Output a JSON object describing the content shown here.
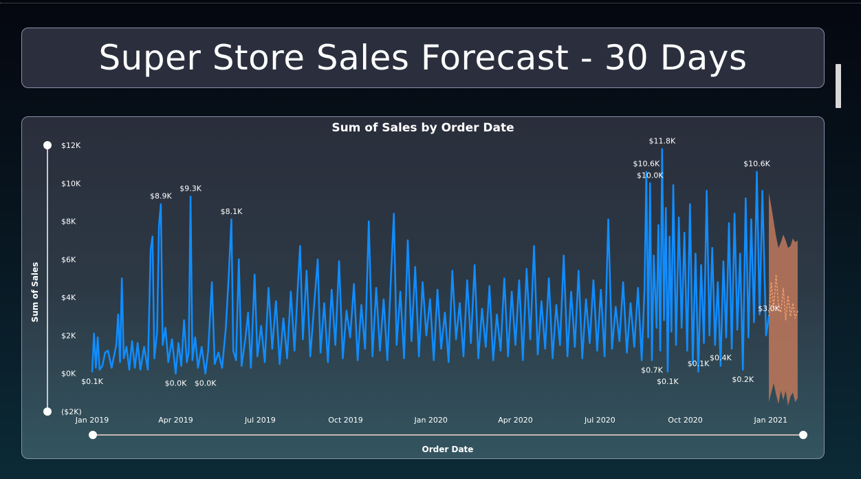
{
  "header": {
    "title": "Super Store Sales Forecast - 30 Days"
  },
  "colors": {
    "series": "#118dff",
    "forecast_band": "#c0785a",
    "forecast_line": "#f0a070",
    "slider": "#ffffff"
  },
  "chart_data": {
    "type": "line",
    "title": "Sum of Sales by Order Date",
    "xlabel": "Order Date",
    "ylabel": "Sum of Sales",
    "ylim": [
      -2000,
      12000
    ],
    "xlim": [
      "2019-01-01",
      "2021-02-05"
    ],
    "y_ticks": [
      {
        "value": 12000,
        "label": "$12K"
      },
      {
        "value": 10000,
        "label": "$10K"
      },
      {
        "value": 8000,
        "label": "$8K"
      },
      {
        "value": 6000,
        "label": "$6K"
      },
      {
        "value": 4000,
        "label": "$4K"
      },
      {
        "value": 2000,
        "label": "$2K"
      },
      {
        "value": 0,
        "label": "$0K"
      },
      {
        "value": -2000,
        "label": "($2K)"
      }
    ],
    "x_ticks": [
      {
        "date": "2019-01-01",
        "label": "Jan 2019"
      },
      {
        "date": "2019-04-01",
        "label": "Apr 2019"
      },
      {
        "date": "2019-07-01",
        "label": "Jul 2019"
      },
      {
        "date": "2019-10-01",
        "label": "Oct 2019"
      },
      {
        "date": "2020-01-01",
        "label": "Jan 2020"
      },
      {
        "date": "2020-04-01",
        "label": "Apr 2020"
      },
      {
        "date": "2020-07-01",
        "label": "Jul 2020"
      },
      {
        "date": "2020-10-01",
        "label": "Oct 2020"
      },
      {
        "date": "2021-01-01",
        "label": "Jan 2021"
      }
    ],
    "series": [
      {
        "points": [
          [
            "2019-01-01",
            100
          ],
          [
            "2019-01-03",
            2100
          ],
          [
            "2019-01-05",
            300
          ],
          [
            "2019-01-07",
            1900
          ],
          [
            "2019-01-09",
            200
          ],
          [
            "2019-01-12",
            400
          ],
          [
            "2019-01-15",
            1100
          ],
          [
            "2019-01-18",
            1200
          ],
          [
            "2019-01-22",
            300
          ],
          [
            "2019-01-27",
            1500
          ],
          [
            "2019-01-29",
            3100
          ],
          [
            "2019-01-31",
            600
          ],
          [
            "2019-02-02",
            5000
          ],
          [
            "2019-02-04",
            800
          ],
          [
            "2019-02-07",
            1400
          ],
          [
            "2019-02-10",
            200
          ],
          [
            "2019-02-13",
            1700
          ],
          [
            "2019-02-16",
            300
          ],
          [
            "2019-02-19",
            1600
          ],
          [
            "2019-02-22",
            200
          ],
          [
            "2019-02-26",
            1400
          ],
          [
            "2019-03-02",
            200
          ],
          [
            "2019-03-05",
            6500
          ],
          [
            "2019-03-07",
            7200
          ],
          [
            "2019-03-09",
            800
          ],
          [
            "2019-03-12",
            2200
          ],
          [
            "2019-03-14",
            7800
          ],
          [
            "2019-03-16",
            8900
          ],
          [
            "2019-03-18",
            1500
          ],
          [
            "2019-03-21",
            2400
          ],
          [
            "2019-03-24",
            600
          ],
          [
            "2019-03-28",
            1800
          ],
          [
            "2019-04-01",
            0
          ],
          [
            "2019-04-04",
            1600
          ],
          [
            "2019-04-07",
            400
          ],
          [
            "2019-04-10",
            2800
          ],
          [
            "2019-04-13",
            600
          ],
          [
            "2019-04-15",
            1100
          ],
          [
            "2019-04-17",
            9300
          ],
          [
            "2019-04-19",
            700
          ],
          [
            "2019-04-22",
            1900
          ],
          [
            "2019-04-25",
            300
          ],
          [
            "2019-04-29",
            1400
          ],
          [
            "2019-05-03",
            0
          ],
          [
            "2019-05-06",
            1200
          ],
          [
            "2019-05-10",
            4800
          ],
          [
            "2019-05-13",
            500
          ],
          [
            "2019-05-17",
            1100
          ],
          [
            "2019-05-21",
            300
          ],
          [
            "2019-05-25",
            2400
          ],
          [
            "2019-05-28",
            5000
          ],
          [
            "2019-05-31",
            8100
          ],
          [
            "2019-06-02",
            1200
          ],
          [
            "2019-06-05",
            700
          ],
          [
            "2019-06-08",
            6000
          ],
          [
            "2019-06-11",
            400
          ],
          [
            "2019-06-15",
            1800
          ],
          [
            "2019-06-18",
            3200
          ],
          [
            "2019-06-21",
            300
          ],
          [
            "2019-06-25",
            5200
          ],
          [
            "2019-06-28",
            900
          ],
          [
            "2019-07-02",
            2500
          ],
          [
            "2019-07-06",
            600
          ],
          [
            "2019-07-10",
            4500
          ],
          [
            "2019-07-14",
            1300
          ],
          [
            "2019-07-18",
            3800
          ],
          [
            "2019-07-22",
            500
          ],
          [
            "2019-07-26",
            2900
          ],
          [
            "2019-07-30",
            800
          ],
          [
            "2019-08-03",
            4300
          ],
          [
            "2019-08-07",
            1200
          ],
          [
            "2019-08-11",
            5000
          ],
          [
            "2019-08-13",
            6700
          ],
          [
            "2019-08-16",
            1800
          ],
          [
            "2019-08-20",
            5400
          ],
          [
            "2019-08-24",
            900
          ],
          [
            "2019-08-28",
            3500
          ],
          [
            "2019-09-01",
            6000
          ],
          [
            "2019-09-04",
            1100
          ],
          [
            "2019-09-08",
            3700
          ],
          [
            "2019-09-12",
            600
          ],
          [
            "2019-09-16",
            4400
          ],
          [
            "2019-09-20",
            1500
          ],
          [
            "2019-09-24",
            5900
          ],
          [
            "2019-09-28",
            800
          ],
          [
            "2019-10-02",
            3300
          ],
          [
            "2019-10-06",
            1900
          ],
          [
            "2019-10-10",
            4700
          ],
          [
            "2019-10-14",
            700
          ],
          [
            "2019-10-18",
            3600
          ],
          [
            "2019-10-22",
            1300
          ],
          [
            "2019-10-26",
            8000
          ],
          [
            "2019-10-30",
            900
          ],
          [
            "2019-11-03",
            4500
          ],
          [
            "2019-11-07",
            1200
          ],
          [
            "2019-11-11",
            3900
          ],
          [
            "2019-11-15",
            700
          ],
          [
            "2019-11-19",
            5200
          ],
          [
            "2019-11-22",
            8400
          ],
          [
            "2019-11-25",
            1500
          ],
          [
            "2019-11-29",
            4300
          ],
          [
            "2019-12-03",
            800
          ],
          [
            "2019-12-07",
            7000
          ],
          [
            "2019-12-11",
            1700
          ],
          [
            "2019-12-15",
            5600
          ],
          [
            "2019-12-19",
            900
          ],
          [
            "2019-12-23",
            4800
          ],
          [
            "2019-12-27",
            2000
          ],
          [
            "2019-12-31",
            3900
          ],
          [
            "2020-01-04",
            700
          ],
          [
            "2020-01-08",
            4400
          ],
          [
            "2020-01-12",
            1300
          ],
          [
            "2020-01-16",
            3200
          ],
          [
            "2020-01-20",
            600
          ],
          [
            "2020-01-24",
            5400
          ],
          [
            "2020-01-28",
            1800
          ],
          [
            "2020-02-01",
            3700
          ],
          [
            "2020-02-05",
            900
          ],
          [
            "2020-02-09",
            4900
          ],
          [
            "2020-02-13",
            1600
          ],
          [
            "2020-02-17",
            5700
          ],
          [
            "2020-02-21",
            800
          ],
          [
            "2020-02-25",
            3400
          ],
          [
            "2020-02-29",
            1400
          ],
          [
            "2020-03-04",
            4600
          ],
          [
            "2020-03-08",
            700
          ],
          [
            "2020-03-12",
            3100
          ],
          [
            "2020-03-16",
            1200
          ],
          [
            "2020-03-20",
            5000
          ],
          [
            "2020-03-24",
            900
          ],
          [
            "2020-03-28",
            4300
          ],
          [
            "2020-04-01",
            1500
          ],
          [
            "2020-04-05",
            4900
          ],
          [
            "2020-04-09",
            700
          ],
          [
            "2020-04-13",
            5500
          ],
          [
            "2020-04-17",
            1800
          ],
          [
            "2020-04-21",
            6700
          ],
          [
            "2020-04-25",
            1000
          ],
          [
            "2020-04-29",
            3800
          ],
          [
            "2020-05-03",
            1300
          ],
          [
            "2020-05-07",
            5000
          ],
          [
            "2020-05-11",
            800
          ],
          [
            "2020-05-15",
            3600
          ],
          [
            "2020-05-19",
            1500
          ],
          [
            "2020-05-23",
            6200
          ],
          [
            "2020-05-27",
            900
          ],
          [
            "2020-05-31",
            4300
          ],
          [
            "2020-06-04",
            1400
          ],
          [
            "2020-06-08",
            5400
          ],
          [
            "2020-06-12",
            800
          ],
          [
            "2020-06-16",
            3900
          ],
          [
            "2020-06-20",
            1600
          ],
          [
            "2020-06-24",
            4900
          ],
          [
            "2020-06-28",
            1200
          ],
          [
            "2020-07-02",
            4400
          ],
          [
            "2020-07-06",
            900
          ],
          [
            "2020-07-10",
            8100
          ],
          [
            "2020-07-14",
            1300
          ],
          [
            "2020-07-18",
            3500
          ],
          [
            "2020-07-22",
            1700
          ],
          [
            "2020-07-26",
            4800
          ],
          [
            "2020-07-30",
            1100
          ],
          [
            "2020-08-03",
            3700
          ],
          [
            "2020-08-07",
            1400
          ],
          [
            "2020-08-11",
            4500
          ],
          [
            "2020-08-15",
            700
          ],
          [
            "2020-08-18",
            4400
          ],
          [
            "2020-08-20",
            10600
          ],
          [
            "2020-08-22",
            1900
          ],
          [
            "2020-08-24",
            10000
          ],
          [
            "2020-08-26",
            700
          ],
          [
            "2020-08-28",
            6200
          ],
          [
            "2020-08-31",
            2400
          ],
          [
            "2020-09-02",
            7800
          ],
          [
            "2020-09-04",
            1200
          ],
          [
            "2020-09-06",
            11800
          ],
          [
            "2020-09-08",
            2800
          ],
          [
            "2020-09-10",
            8700
          ],
          [
            "2020-09-12",
            100
          ],
          [
            "2020-09-14",
            7200
          ],
          [
            "2020-09-16",
            2200
          ],
          [
            "2020-09-18",
            9900
          ],
          [
            "2020-09-21",
            1500
          ],
          [
            "2020-09-24",
            8200
          ],
          [
            "2020-09-27",
            2400
          ],
          [
            "2020-09-30",
            7400
          ],
          [
            "2020-10-03",
            1200
          ],
          [
            "2020-10-06",
            8900
          ],
          [
            "2020-10-09",
            500
          ],
          [
            "2020-10-12",
            6300
          ],
          [
            "2020-10-15",
            100
          ],
          [
            "2020-10-18",
            5700
          ],
          [
            "2020-10-21",
            1600
          ],
          [
            "2020-10-24",
            9600
          ],
          [
            "2020-10-27",
            2000
          ],
          [
            "2020-10-30",
            6600
          ],
          [
            "2020-11-02",
            1500
          ],
          [
            "2020-11-05",
            4800
          ],
          [
            "2020-11-08",
            400
          ],
          [
            "2020-11-11",
            5900
          ],
          [
            "2020-11-14",
            1900
          ],
          [
            "2020-11-17",
            7900
          ],
          [
            "2020-11-20",
            1300
          ],
          [
            "2020-11-23",
            8400
          ],
          [
            "2020-11-26",
            2300
          ],
          [
            "2020-11-29",
            6300
          ],
          [
            "2020-12-02",
            200
          ],
          [
            "2020-12-05",
            9200
          ],
          [
            "2020-12-08",
            1900
          ],
          [
            "2020-12-11",
            8100
          ],
          [
            "2020-12-14",
            2700
          ],
          [
            "2020-12-17",
            10600
          ],
          [
            "2020-12-20",
            3100
          ],
          [
            "2020-12-23",
            9600
          ],
          [
            "2020-12-27",
            2000
          ],
          [
            "2020-12-30",
            3000
          ]
        ]
      }
    ],
    "forecast": {
      "start": "2020-12-30",
      "end": "2021-01-30",
      "upper": [
        9500,
        8800,
        8000,
        7200,
        6600,
        6900,
        7300,
        7000,
        6600,
        6700,
        7100,
        6900,
        7000
      ],
      "lower": [
        -1500,
        -1000,
        -500,
        -1100,
        -1600,
        -900,
        -1400,
        -900,
        -1700,
        -1200,
        -1000,
        -1500,
        -1300
      ],
      "estimate": [
        3000,
        4800,
        3400,
        5200,
        3600,
        3200,
        4500,
        2800,
        4100,
        3000,
        3700,
        2900,
        3300
      ]
    },
    "data_labels": [
      {
        "date": "2019-01-01",
        "value": 100,
        "label": "$0.1K",
        "pos": "below"
      },
      {
        "date": "2019-03-16",
        "value": 8900,
        "label": "$8.9K",
        "pos": "above"
      },
      {
        "date": "2019-04-01",
        "value": 0,
        "label": "$0.0K",
        "pos": "below"
      },
      {
        "date": "2019-04-17",
        "value": 9300,
        "label": "$9.3K",
        "pos": "above"
      },
      {
        "date": "2019-05-03",
        "value": 0,
        "label": "$0.0K",
        "pos": "below"
      },
      {
        "date": "2019-05-31",
        "value": 8100,
        "label": "$8.1K",
        "pos": "above"
      },
      {
        "date": "2020-08-20",
        "value": 10600,
        "label": "$10.6K",
        "pos": "above"
      },
      {
        "date": "2020-08-24",
        "value": 10000,
        "label": "$10.0K",
        "pos": "above"
      },
      {
        "date": "2020-08-26",
        "value": 700,
        "label": "$0.7K",
        "pos": "below"
      },
      {
        "date": "2020-09-06",
        "value": 11800,
        "label": "$11.8K",
        "pos": "above"
      },
      {
        "date": "2020-09-12",
        "value": 100,
        "label": "$0.1K",
        "pos": "below"
      },
      {
        "date": "2020-10-15",
        "value": 100,
        "label": "$0.1K",
        "pos": "above"
      },
      {
        "date": "2020-11-08",
        "value": 400,
        "label": "$0.4K",
        "pos": "above"
      },
      {
        "date": "2020-12-02",
        "value": 200,
        "label": "$0.2K",
        "pos": "below"
      },
      {
        "date": "2020-12-17",
        "value": 10600,
        "label": "$10.6K",
        "pos": "above"
      },
      {
        "date": "2020-12-30",
        "value": 3000,
        "label": "$3.0K",
        "pos": "above"
      }
    ]
  }
}
